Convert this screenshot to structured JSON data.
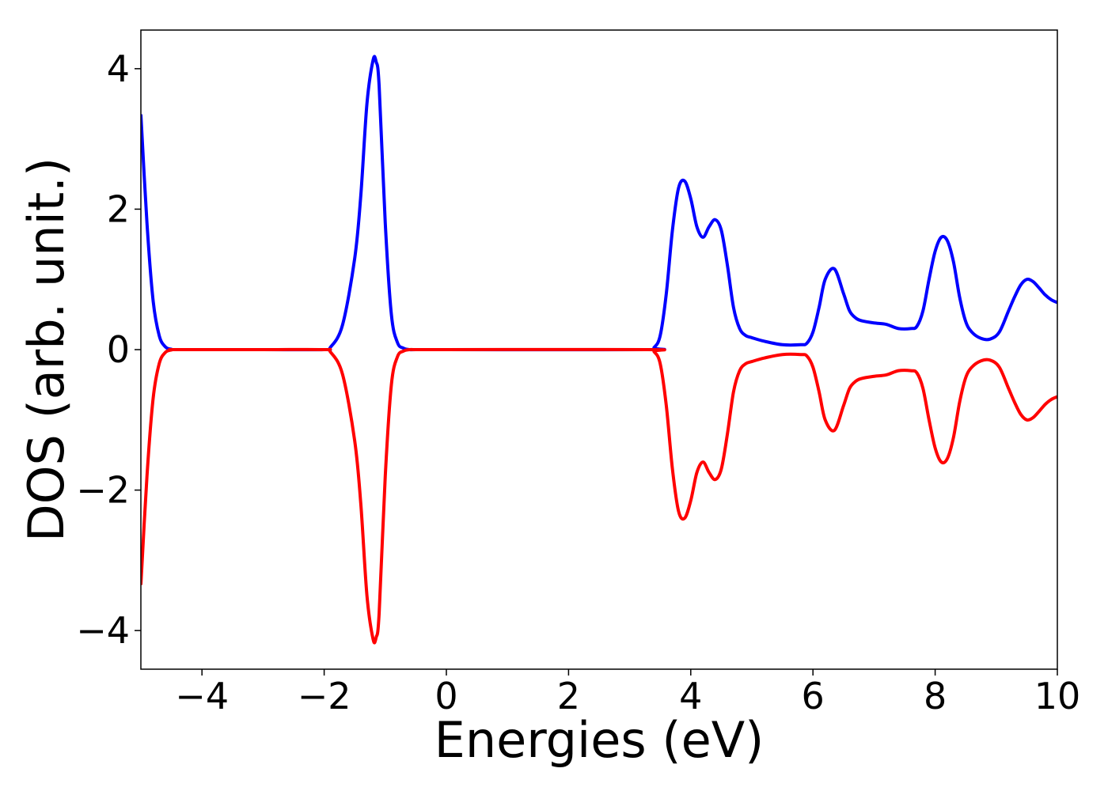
{
  "chart_data": {
    "type": "line",
    "title": "",
    "xlabel": "Energies (eV)",
    "ylabel": "DOS (arb. unit.)",
    "xlim": [
      -5,
      10
    ],
    "ylim": [
      -4.55,
      4.55
    ],
    "grid": false,
    "legend": "none",
    "x_ticks": [
      -4,
      -2,
      0,
      2,
      4,
      6,
      8,
      10
    ],
    "y_ticks": [
      -4,
      -2,
      0,
      2,
      4
    ],
    "x_tick_labels": [
      "−4",
      "−2",
      "0",
      "2",
      "4",
      "6",
      "8",
      "10"
    ],
    "y_tick_labels": [
      "−4",
      "−2",
      "0",
      "2",
      "4"
    ],
    "series": [
      {
        "color": "#0000ff",
        "x": [
          -5.0,
          -4.9,
          -4.8,
          -4.7,
          -4.6,
          -4.5,
          -4.4,
          -3.0,
          -2.0,
          -1.9,
          -1.7,
          -1.5,
          -1.4,
          -1.3,
          -1.2,
          -1.15,
          -1.1,
          -1.0,
          -0.9,
          -0.8,
          -0.7,
          -0.6,
          -0.5,
          0.0,
          3.3,
          3.4,
          3.5,
          3.6,
          3.7,
          3.8,
          3.9,
          4.0,
          4.1,
          4.2,
          4.3,
          4.4,
          4.5,
          4.6,
          4.7,
          4.8,
          4.9,
          5.0,
          5.2,
          5.5,
          5.8,
          5.9,
          6.0,
          6.1,
          6.2,
          6.35,
          6.5,
          6.6,
          6.7,
          6.8,
          7.0,
          7.2,
          7.4,
          7.6,
          7.7,
          7.8,
          7.9,
          8.0,
          8.1,
          8.2,
          8.3,
          8.4,
          8.5,
          8.6,
          8.75,
          8.9,
          9.05,
          9.2,
          9.3,
          9.4,
          9.5,
          9.6,
          9.7,
          9.8,
          9.9,
          10.0
        ],
        "y": [
          3.35,
          1.8,
          0.7,
          0.2,
          0.04,
          0.005,
          0.0,
          0.0,
          0.0,
          0.03,
          0.35,
          1.3,
          2.2,
          3.5,
          4.12,
          4.1,
          3.75,
          1.8,
          0.5,
          0.1,
          0.02,
          0.0,
          0.0,
          0.0,
          0.0,
          0.03,
          0.2,
          0.8,
          1.7,
          2.3,
          2.4,
          2.15,
          1.75,
          1.6,
          1.75,
          1.85,
          1.7,
          1.2,
          0.6,
          0.3,
          0.2,
          0.17,
          0.12,
          0.07,
          0.07,
          0.09,
          0.25,
          0.6,
          1.0,
          1.15,
          0.8,
          0.55,
          0.45,
          0.41,
          0.38,
          0.36,
          0.3,
          0.3,
          0.33,
          0.55,
          1.0,
          1.4,
          1.6,
          1.55,
          1.25,
          0.75,
          0.4,
          0.25,
          0.16,
          0.15,
          0.25,
          0.55,
          0.75,
          0.92,
          1.0,
          0.97,
          0.88,
          0.78,
          0.71,
          0.67
        ]
      },
      {
        "color": "#ff0000",
        "x": [
          -5.0,
          -4.9,
          -4.8,
          -4.7,
          -4.6,
          -4.5,
          -4.4,
          -3.0,
          -2.0,
          -1.9,
          -1.7,
          -1.5,
          -1.4,
          -1.3,
          -1.2,
          -1.15,
          -1.1,
          -1.0,
          -0.9,
          -0.8,
          -0.7,
          -0.6,
          -0.5,
          0.0,
          3.3,
          3.4,
          3.5,
          3.6,
          3.7,
          3.8,
          3.9,
          4.0,
          4.1,
          4.2,
          4.3,
          4.4,
          4.5,
          4.6,
          4.7,
          4.8,
          4.9,
          5.0,
          5.2,
          5.5,
          5.8,
          5.9,
          6.0,
          6.1,
          6.2,
          6.35,
          6.5,
          6.6,
          6.7,
          6.8,
          7.0,
          7.2,
          7.4,
          7.6,
          7.7,
          7.8,
          7.9,
          8.0,
          8.1,
          8.2,
          8.3,
          8.4,
          8.5,
          8.6,
          8.75,
          8.9,
          9.05,
          9.2,
          9.3,
          9.4,
          9.5,
          9.6,
          9.7,
          9.8,
          9.9,
          10.0
        ],
        "y": [
          -3.35,
          -1.8,
          -0.7,
          -0.2,
          -0.04,
          -0.005,
          0.0,
          0.0,
          0.0,
          -0.03,
          -0.35,
          -1.3,
          -2.2,
          -3.5,
          -4.12,
          -4.1,
          -3.75,
          -1.8,
          -0.5,
          -0.1,
          -0.02,
          0.0,
          0.0,
          0.0,
          0.0,
          -0.03,
          -0.2,
          -0.8,
          -1.7,
          -2.3,
          -2.4,
          -2.15,
          -1.75,
          -1.6,
          -1.75,
          -1.85,
          -1.7,
          -1.2,
          -0.6,
          -0.3,
          -0.2,
          -0.17,
          -0.12,
          -0.07,
          -0.07,
          -0.09,
          -0.25,
          -0.6,
          -1.0,
          -1.15,
          -0.8,
          -0.55,
          -0.45,
          -0.41,
          -0.38,
          -0.36,
          -0.3,
          -0.3,
          -0.33,
          -0.55,
          -1.0,
          -1.4,
          -1.6,
          -1.55,
          -1.25,
          -0.75,
          -0.4,
          -0.25,
          -0.16,
          -0.15,
          -0.25,
          -0.55,
          -0.75,
          -0.92,
          -1.0,
          -0.97,
          -0.88,
          -0.78,
          -0.71,
          -0.67
        ]
      }
    ]
  }
}
